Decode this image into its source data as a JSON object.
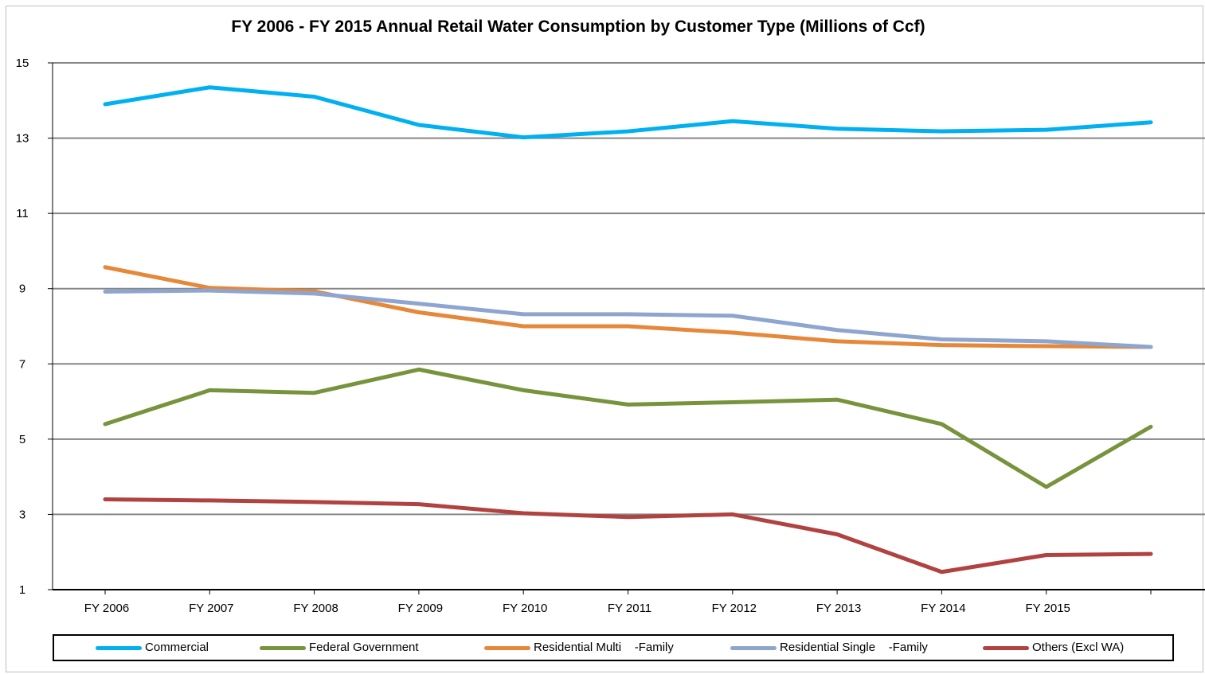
{
  "chart_data": {
    "type": "line",
    "title": "FY 2006 - FY 2015 Annual Retail Water Consumption by Customer Type (Millions of Ccf)",
    "xlabel": "",
    "ylabel": "",
    "categories": [
      "FY 2006",
      "FY 2007",
      "FY 2008",
      "FY 2009",
      "FY 2010",
      "FY 2011",
      "FY 2012",
      "FY 2013",
      "FY 2014",
      "FY 2015",
      ""
    ],
    "yticks": [
      "1",
      "3",
      "5",
      "7",
      "9",
      "11",
      "13",
      "15"
    ],
    "ylim": [
      1,
      15
    ],
    "grid": true,
    "legend_position": "bottom",
    "series": [
      {
        "name": "Commercial",
        "color": "#00b0f0",
        "values": [
          13.9,
          14.35,
          14.1,
          13.35,
          13.02,
          13.18,
          13.45,
          13.25,
          13.18,
          13.22,
          13.42
        ]
      },
      {
        "name": "Federal Government",
        "color": "#77933c",
        "values": [
          5.4,
          6.3,
          6.23,
          6.85,
          6.3,
          5.92,
          5.98,
          6.05,
          5.4,
          3.73,
          5.33
        ]
      },
      {
        "name": "Residential Multi    -Family",
        "color": "#e6883a",
        "values": [
          9.57,
          9.02,
          8.93,
          8.37,
          8.0,
          8.0,
          7.83,
          7.6,
          7.5,
          7.47,
          7.45
        ]
      },
      {
        "name": "Residential Single    -Family",
        "color": "#8ea6cf",
        "values": [
          8.92,
          8.95,
          8.87,
          8.6,
          8.32,
          8.32,
          8.28,
          7.9,
          7.65,
          7.6,
          7.45
        ]
      },
      {
        "name": "Others (Excl WA)",
        "color": "#b04240",
        "values": [
          3.4,
          3.37,
          3.33,
          3.27,
          3.03,
          2.93,
          3.0,
          2.47,
          1.47,
          1.92,
          1.95
        ]
      }
    ]
  }
}
